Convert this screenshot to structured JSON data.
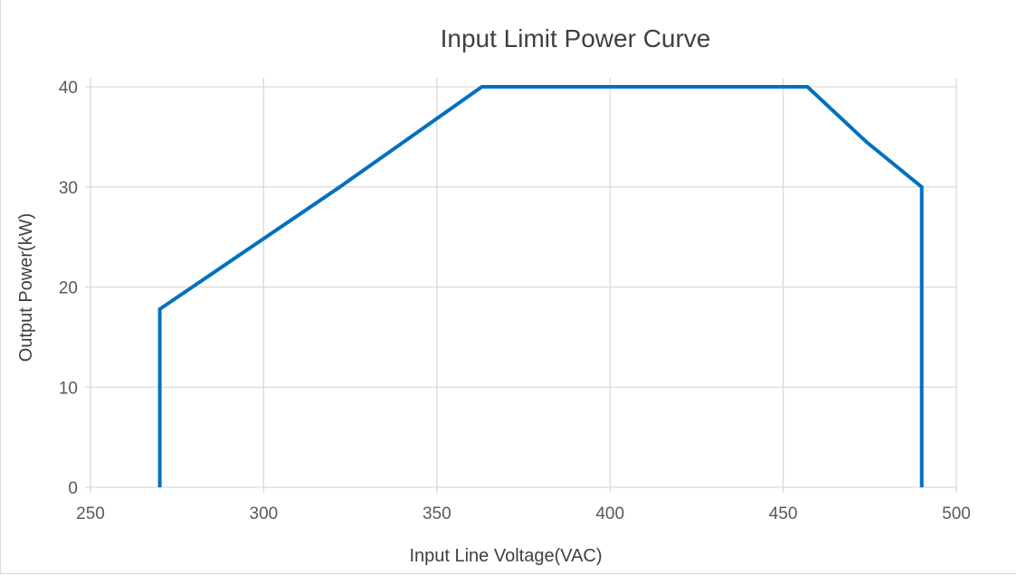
{
  "chart_data": {
    "type": "line",
    "title": "Input Limit Power Curve",
    "xlabel": "Input Line Voltage(VAC)",
    "ylabel": "Output Power(kW)",
    "xlim": [
      250,
      500
    ],
    "ylim": [
      0,
      40
    ],
    "xticks": [
      250,
      300,
      350,
      400,
      450,
      500
    ],
    "yticks": [
      0,
      10,
      20,
      30,
      40
    ],
    "grid": true,
    "series": [
      {
        "color": "#0070c0",
        "x": [
          270,
          270,
          322,
          363,
          457,
          474,
          490,
          490
        ],
        "y": [
          0,
          17.8,
          30,
          40,
          40,
          34.5,
          30,
          0
        ]
      }
    ]
  }
}
